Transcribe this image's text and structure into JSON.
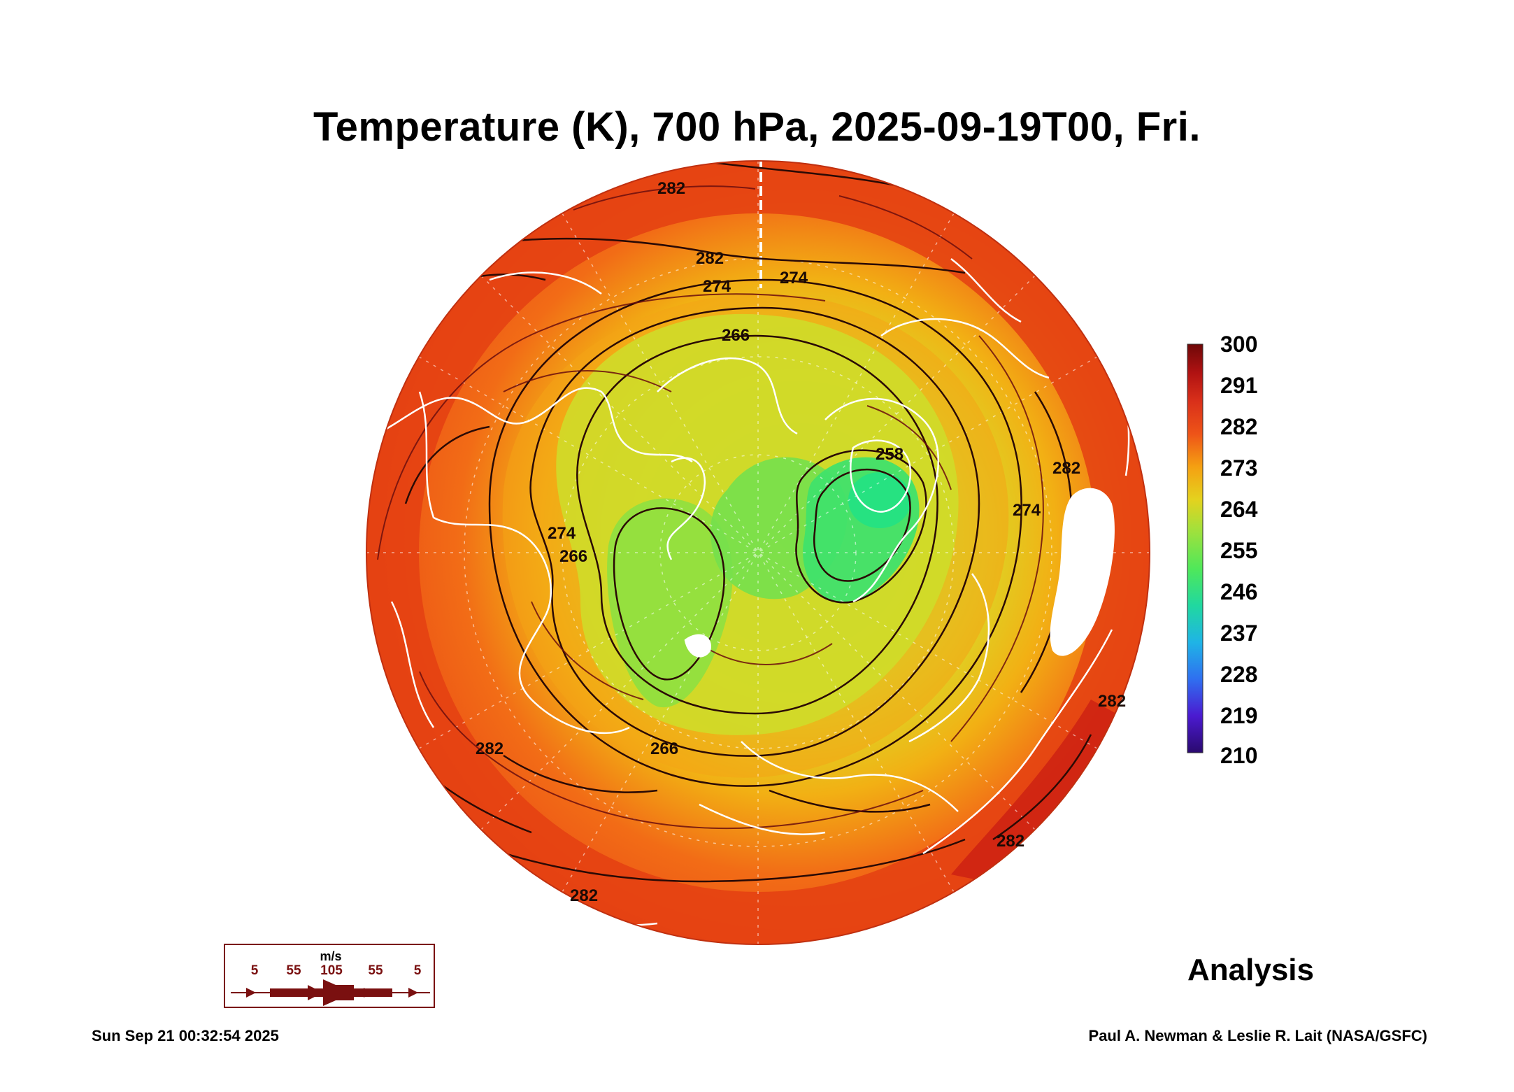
{
  "title": "Temperature (K), 700 hPa, 2025-09-19T00, Fri.",
  "colorbar": {
    "labels": [
      "300",
      "291",
      "282",
      "273",
      "264",
      "255",
      "246",
      "237",
      "228",
      "219",
      "210"
    ],
    "min": 210,
    "max": 300,
    "colors": [
      "#2a0a6e",
      "#4b1ad0",
      "#2f6ff0",
      "#1fb4e6",
      "#20d8a0",
      "#4fe85a",
      "#a6e03a",
      "#e4d21e",
      "#f5a012",
      "#ee5418",
      "#d9301a",
      "#b01212",
      "#6e0808"
    ]
  },
  "contour_labels": [
    "282",
    "282",
    "274",
    "274",
    "266",
    "258",
    "274",
    "282",
    "266",
    "274",
    "266",
    "282",
    "282",
    "282",
    "282"
  ],
  "wind_legend": {
    "unit": "m/s",
    "values": [
      "5",
      "55",
      "105",
      "55",
      "5"
    ]
  },
  "product": "Analysis",
  "timestamp": "Sun Sep 21 00:32:54 2025",
  "credit": "Paul A. Newman & Leslie R. Lait (NASA/GSFC)",
  "colors": {
    "outer": "#ee4a16",
    "mid": "#f39a18",
    "inner": "#cfe028",
    "core": "#56e45e",
    "coastline": "#ffffff",
    "contour": "#2a0a05",
    "streamline": "#6b0e0e"
  }
}
